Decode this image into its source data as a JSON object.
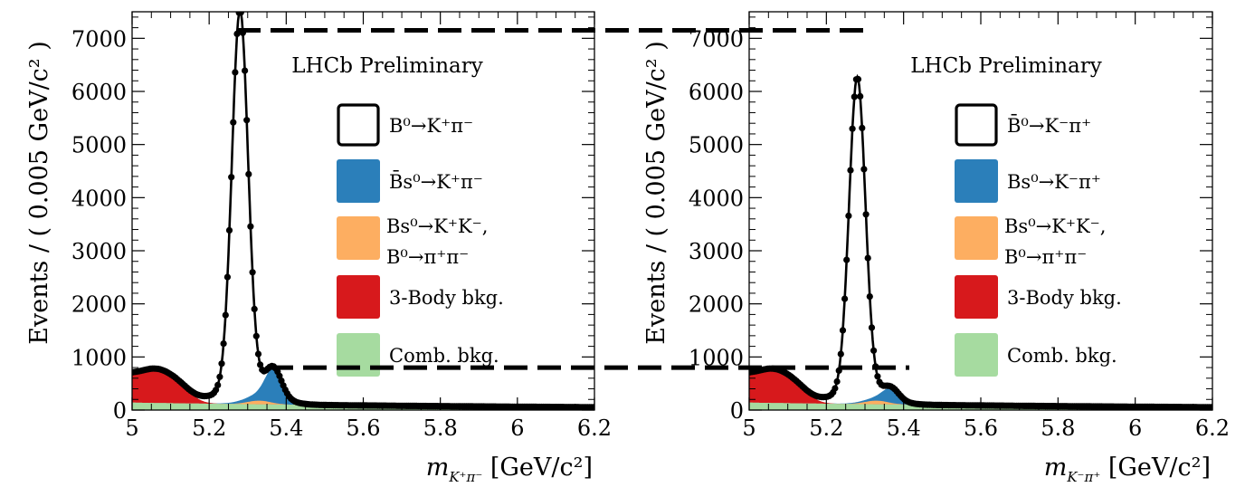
{
  "chart_data": [
    {
      "type": "scatter",
      "panel": "left",
      "title": "",
      "annotation": "LHCb Preliminary",
      "xlabel": {
        "main": "m",
        "sub": "K⁺π⁻",
        "unit": " [GeV/c²]"
      },
      "ylabel": "Events / ( 0.005 GeV/c² )",
      "xlim": [
        5.0,
        6.2
      ],
      "ylim": [
        0,
        7500
      ],
      "xticks": [
        "5",
        "5.2",
        "5.4",
        "5.6",
        "5.8",
        "6",
        "6.2"
      ],
      "yticks": [
        "0",
        "1000",
        "2000",
        "3000",
        "4000",
        "5000",
        "6000",
        "7000"
      ],
      "legend": [
        {
          "label": "B⁰→K⁺π⁻",
          "color": "#ffffff"
        },
        {
          "label": "B̄s⁰→K⁺π⁻",
          "color": "#2b7fba"
        },
        {
          "label": "Bs⁰→K⁺K⁻,",
          "label2": "B⁰→π⁺π⁻",
          "color": "#fdae61"
        },
        {
          "label": "3-Body bkg.",
          "color": "#d7191c"
        },
        {
          "label": "Comb. bkg.",
          "color": "#a6dba0"
        }
      ],
      "signal": {
        "mean": 5.28,
        "sigma": 0.021,
        "peak": 7150
      },
      "secondary_peak": {
        "mean": 5.367,
        "sigma": 0.021,
        "peak": 520
      },
      "three_body_level": 560,
      "combinatorial_level": 140,
      "reference_lines": [
        7150,
        800
      ]
    },
    {
      "type": "scatter",
      "panel": "right",
      "title": "",
      "annotation": "LHCb Preliminary",
      "xlabel": {
        "main": "m",
        "sub": "K⁻π⁺",
        "unit": " [GeV/c²]"
      },
      "ylabel": "Events / ( 0.005 GeV/c² )",
      "xlim": [
        5.0,
        6.2
      ],
      "ylim": [
        0,
        7500
      ],
      "xticks": [
        "5",
        "5.2",
        "5.4",
        "5.6",
        "5.8",
        "6",
        "6.2"
      ],
      "yticks": [
        "0",
        "1000",
        "2000",
        "3000",
        "4000",
        "5000",
        "6000",
        "7000"
      ],
      "legend": [
        {
          "label": "B̄⁰→K⁻π⁺",
          "color": "#ffffff"
        },
        {
          "label": "Bs⁰→K⁻π⁺",
          "color": "#2b7fba"
        },
        {
          "label": "Bs⁰→K⁺K⁻,",
          "label2": "B⁰→π⁺π⁻",
          "color": "#fdae61"
        },
        {
          "label": "3-Body bkg.",
          "color": "#d7191c"
        },
        {
          "label": "Comb. bkg.",
          "color": "#a6dba0"
        }
      ],
      "signal": {
        "mean": 5.28,
        "sigma": 0.021,
        "peak": 5950
      },
      "secondary_peak": {
        "mean": 5.367,
        "sigma": 0.021,
        "peak": 220
      },
      "three_body_level": 560,
      "combinatorial_level": 140,
      "reference_lines": [
        7150,
        800
      ]
    }
  ]
}
